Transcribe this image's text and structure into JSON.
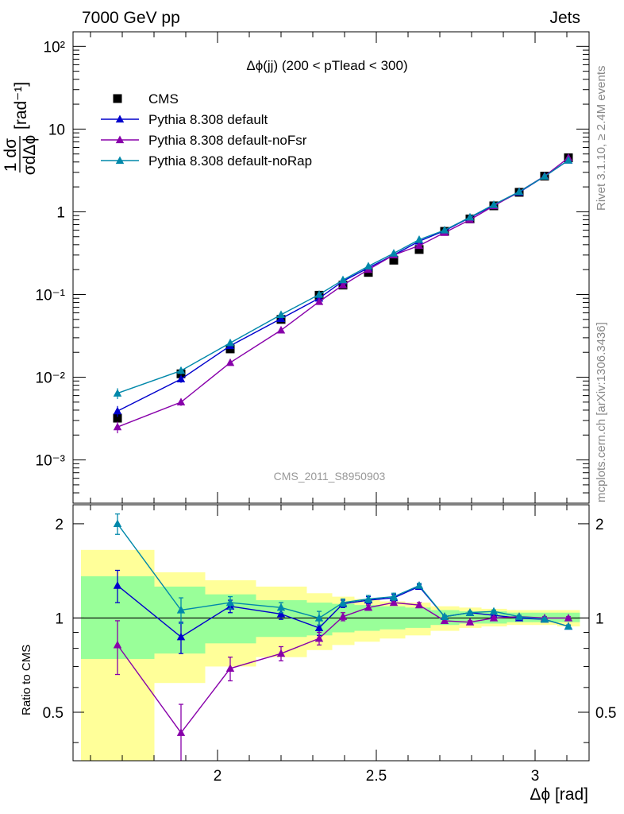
{
  "header": {
    "left": "7000 GeV pp",
    "right": "Jets"
  },
  "side_labels": {
    "rivet": "Rivet 3.1.10, ≥ 2.4M events",
    "source": "mcplots.cern.ch [arXiv:1306.3436]"
  },
  "analysis_tag": "CMS_2011_S8950903",
  "chart_data": {
    "type": "line",
    "title": "Δϕ(jj) (200 < pTlead <  300)",
    "xlabel": "Δϕ [rad]",
    "ylabel": "1/σ dσ/dΔϕ [rad⁻¹]",
    "ratio_ylabel": "Ratio to CMS",
    "xlim": [
      1.545,
      3.17
    ],
    "ylim": [
      0.0003,
      150
    ],
    "ratio_ylim": [
      0.35,
      2.3
    ],
    "yscale": "log",
    "ratio_yscale": "log",
    "legend_position": "top-left",
    "x_ticks": [
      "2",
      "2.5",
      "3"
    ],
    "y_ticks": [
      "10⁻³",
      "10⁻²",
      "10⁻¹",
      "1",
      "10",
      "10²"
    ],
    "ratio_ticks": [
      "0.5",
      "1",
      "2"
    ],
    "x": [
      1.685,
      1.885,
      2.04,
      2.2,
      2.32,
      2.395,
      2.475,
      2.555,
      2.635,
      2.715,
      2.795,
      2.87,
      2.95,
      3.03,
      3.105
    ],
    "x_bins": [
      1.57,
      1.8,
      1.96,
      2.12,
      2.28,
      2.36,
      2.43,
      2.51,
      2.59,
      2.67,
      2.76,
      2.83,
      2.91,
      2.99,
      3.07,
      3.14
    ],
    "cms": {
      "name": "CMS",
      "values": [
        0.0032,
        0.011,
        0.022,
        0.05,
        0.098,
        0.13,
        0.185,
        0.26,
        0.35,
        0.58,
        0.82,
        1.18,
        1.72,
        2.7,
        4.5
      ],
      "band_inner": [
        [
          0.74,
          1.36
        ],
        [
          0.77,
          1.26
        ],
        [
          0.83,
          1.19
        ],
        [
          0.87,
          1.14
        ],
        [
          0.88,
          1.12
        ],
        [
          0.9,
          1.11
        ],
        [
          0.91,
          1.1
        ],
        [
          0.92,
          1.09
        ],
        [
          0.93,
          1.08
        ],
        [
          0.95,
          1.06
        ],
        [
          0.96,
          1.05
        ],
        [
          0.96,
          1.05
        ],
        [
          0.97,
          1.04
        ],
        [
          0.97,
          1.04
        ],
        [
          0.97,
          1.04
        ]
      ],
      "band_outer": [
        [
          0.3,
          1.65
        ],
        [
          0.62,
          1.4
        ],
        [
          0.7,
          1.32
        ],
        [
          0.75,
          1.26
        ],
        [
          0.79,
          1.2
        ],
        [
          0.82,
          1.17
        ],
        [
          0.84,
          1.15
        ],
        [
          0.86,
          1.13
        ],
        [
          0.88,
          1.12
        ],
        [
          0.91,
          1.09
        ],
        [
          0.93,
          1.08
        ],
        [
          0.94,
          1.07
        ],
        [
          0.95,
          1.06
        ],
        [
          0.95,
          1.06
        ],
        [
          0.94,
          1.06
        ]
      ]
    },
    "series": [
      {
        "name": "Pythia 8.308 default",
        "color": "#0000cc",
        "values": [
          0.0039,
          0.0095,
          0.024,
          0.051,
          0.09,
          0.145,
          0.21,
          0.3,
          0.44,
          0.59,
          0.85,
          1.2,
          1.72,
          2.68,
          4.2
        ],
        "ratio": [
          1.27,
          0.87,
          1.09,
          1.03,
          0.93,
          1.11,
          1.14,
          1.16,
          1.26,
          1.01,
          1.04,
          1.02,
          1.0,
          0.99,
          0.94
        ],
        "ratio_err": [
          0.15,
          0.1,
          0.05,
          0.04,
          0.05,
          0.03,
          0.03,
          0.03,
          0.02,
          0.01,
          0.01,
          0.01,
          0.01,
          0.01,
          0.01
        ]
      },
      {
        "name": "Pythia 8.308 default-noFsr",
        "color": "#8800aa",
        "values": [
          0.0025,
          0.005,
          0.015,
          0.037,
          0.082,
          0.13,
          0.2,
          0.3,
          0.39,
          0.56,
          0.8,
          1.18,
          1.75,
          2.7,
          4.5
        ],
        "ratio": [
          0.82,
          0.43,
          0.69,
          0.77,
          0.86,
          1.01,
          1.08,
          1.12,
          1.1,
          0.98,
          0.97,
          1.0,
          1.01,
          1.0,
          1.0
        ],
        "ratio_err": [
          0.16,
          0.1,
          0.06,
          0.04,
          0.04,
          0.03,
          0.02,
          0.02,
          0.02,
          0.01,
          0.01,
          0.01,
          0.01,
          0.01,
          0.01
        ]
      },
      {
        "name": "Pythia 8.308 default-noRap",
        "color": "#0088aa",
        "values": [
          0.0064,
          0.012,
          0.026,
          0.057,
          0.1,
          0.15,
          0.22,
          0.315,
          0.46,
          0.6,
          0.86,
          1.22,
          1.75,
          2.68,
          4.2
        ],
        "ratio": [
          2.0,
          1.06,
          1.12,
          1.08,
          1.0,
          1.12,
          1.15,
          1.17,
          1.27,
          1.01,
          1.04,
          1.05,
          1.01,
          0.99,
          0.94
        ],
        "ratio_err": [
          0.15,
          0.1,
          0.05,
          0.04,
          0.05,
          0.03,
          0.03,
          0.03,
          0.02,
          0.01,
          0.01,
          0.01,
          0.01,
          0.01,
          0.01
        ]
      }
    ]
  }
}
